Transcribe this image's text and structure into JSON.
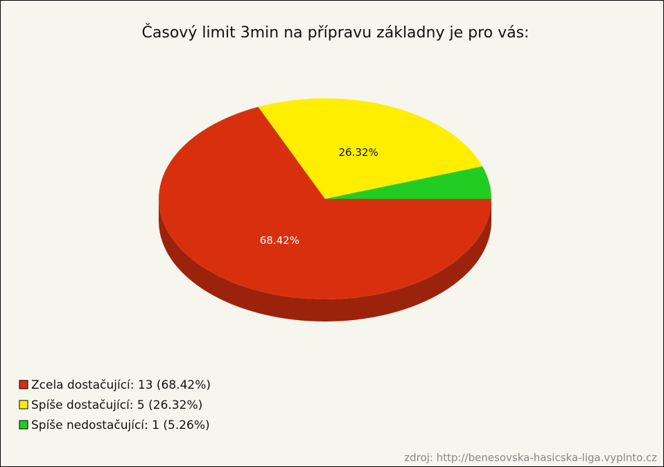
{
  "chart_data": {
    "type": "pie",
    "title": "Časový limit 3min na přípravu základny je pro vás:",
    "categories": [
      "Zcela dostačující: 13 (68.42%)",
      "Spíše dostačující: 5 (26.32%)",
      "Spíše nedostačující: 1 (5.26%)"
    ],
    "values": [
      68.42,
      26.32,
      5.26
    ],
    "value_labels": [
      "68.42%",
      "26.32%",
      null
    ],
    "colors": [
      "#d8300f",
      "#ffee00",
      "#22cc22"
    ],
    "source": "zdroj: http://benesovska-hasicska-liga.vyplnto.cz"
  }
}
